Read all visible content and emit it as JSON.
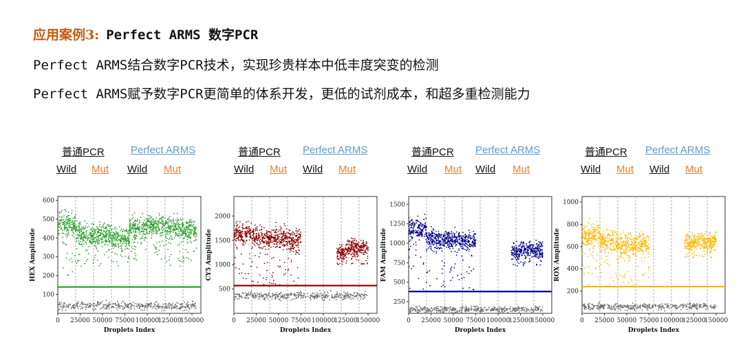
{
  "header": {
    "title_prefix": "应用案例3:",
    "title_main": "Perfect ARMS  数字PCR",
    "line1": "Perfect ARMS结合数字PCR技术，实现珍贵样本中低丰度突变的检测",
    "line2": "Perfect ARMS赋予数字PCR更简单的体系开发，更低的试剂成本，和超多重检测能力"
  },
  "labels": {
    "pcr": "普通PCR",
    "arms": "Perfect ARMS",
    "wild": "Wild",
    "mut": "Mut"
  },
  "colors": {
    "title_accent": "#c55a11",
    "arms_blue": "#5b9bd5",
    "mut_orange": "#ed7d31",
    "negative_gray": "#6e6e6e"
  },
  "chart_data": [
    {
      "type": "scatter",
      "channel": "HEX",
      "ylabel": "HEX Amplitude",
      "xlabel": "Droplets Index",
      "xlim": [
        0,
        160000
      ],
      "ylim": [
        0,
        620
      ],
      "xticks": [
        0,
        25000,
        50000,
        75000,
        100000,
        125000,
        150000
      ],
      "yticks": [
        100,
        200,
        300,
        400,
        500,
        600
      ],
      "threshold": 140,
      "color": "#2ca02c",
      "segment_bounds": [
        0,
        20000,
        40000,
        60000,
        80000,
        100000,
        120000,
        140000,
        160000
      ],
      "positive_segments": [
        {
          "x0": 0,
          "x1": 20000,
          "center": 470,
          "spread": 45,
          "low_min": 200
        },
        {
          "x0": 20000,
          "x1": 40000,
          "center": 420,
          "spread": 40,
          "low_min": 250
        },
        {
          "x0": 40000,
          "x1": 60000,
          "center": 420,
          "spread": 40,
          "low_min": 250
        },
        {
          "x0": 60000,
          "x1": 80000,
          "center": 400,
          "spread": 40,
          "low_min": 250
        },
        {
          "x0": 80000,
          "x1": 100000,
          "center": 450,
          "spread": 40,
          "low_min": 280
        },
        {
          "x0": 100000,
          "x1": 120000,
          "center": 470,
          "spread": 35,
          "low_min": 280
        },
        {
          "x0": 120000,
          "x1": 140000,
          "center": 450,
          "spread": 40,
          "low_min": 250
        },
        {
          "x0": 140000,
          "x1": 155000,
          "center": 440,
          "spread": 40,
          "low_min": 250
        }
      ],
      "negative_cluster": {
        "x0": 0,
        "x1": 155000,
        "center": 40,
        "spread": 15
      }
    },
    {
      "type": "scatter",
      "channel": "CY5",
      "ylabel": "CY5 Amplitude",
      "xlabel": "Droplets Index",
      "xlim": [
        0,
        160000
      ],
      "ylim": [
        0,
        2400
      ],
      "xticks": [
        0,
        25000,
        50000,
        75000,
        100000,
        125000,
        150000
      ],
      "yticks": [
        500,
        1000,
        1500,
        2000
      ],
      "threshold": 570,
      "color": "#8b0000",
      "segment_bounds": [
        0,
        20000,
        40000,
        60000,
        80000,
        100000,
        120000,
        140000,
        160000
      ],
      "positive_segments": [
        {
          "x0": 0,
          "x1": 20000,
          "center": 1650,
          "spread": 150,
          "low_min": 550
        },
        {
          "x0": 20000,
          "x1": 40000,
          "center": 1550,
          "spread": 150,
          "low_min": 550
        },
        {
          "x0": 40000,
          "x1": 60000,
          "center": 1550,
          "spread": 150,
          "low_min": 550
        },
        {
          "x0": 60000,
          "x1": 75000,
          "center": 1500,
          "spread": 150,
          "low_min": 550
        },
        {
          "x0": 115000,
          "x1": 125000,
          "center": 1250,
          "spread": 110,
          "low_min": 1000
        },
        {
          "x0": 125000,
          "x1": 150000,
          "center": 1350,
          "spread": 110,
          "low_min": 1000
        }
      ],
      "negative_cluster": {
        "x0": 0,
        "x1": 150000,
        "center": 360,
        "spread": 55
      }
    },
    {
      "type": "scatter",
      "channel": "FAM",
      "ylabel": "FAM Amplitude",
      "xlabel": "Droplets Index",
      "xlim": [
        0,
        160000
      ],
      "ylim": [
        100,
        1600
      ],
      "xticks": [
        0,
        25000,
        50000,
        75000,
        100000,
        125000,
        150000
      ],
      "yticks": [
        250,
        500,
        750,
        1000,
        1250,
        1500
      ],
      "threshold": 380,
      "color": "#00008b",
      "segment_bounds": [
        0,
        20000,
        40000,
        60000,
        80000,
        100000,
        120000,
        140000,
        160000
      ],
      "positive_segments": [
        {
          "x0": 0,
          "x1": 20000,
          "center": 1180,
          "spread": 90,
          "low_min": 400
        },
        {
          "x0": 20000,
          "x1": 40000,
          "center": 1050,
          "spread": 80,
          "low_min": 400
        },
        {
          "x0": 40000,
          "x1": 60000,
          "center": 1050,
          "spread": 80,
          "low_min": 400
        },
        {
          "x0": 60000,
          "x1": 75000,
          "center": 1030,
          "spread": 80,
          "low_min": 400
        },
        {
          "x0": 115000,
          "x1": 125000,
          "center": 900,
          "spread": 70,
          "low_min": 700
        },
        {
          "x0": 125000,
          "x1": 150000,
          "center": 920,
          "spread": 70,
          "low_min": 700
        }
      ],
      "negative_cluster": {
        "x0": 0,
        "x1": 150000,
        "center": 150,
        "spread": 30
      }
    },
    {
      "type": "scatter",
      "channel": "ROX",
      "ylabel": "ROX Amplitude",
      "xlabel": "Droplets Index",
      "xlim": [
        0,
        160000
      ],
      "ylim": [
        0,
        1050
      ],
      "xticks": [
        0,
        25000,
        50000,
        75000,
        100000,
        125000,
        150000
      ],
      "yticks": [
        200,
        400,
        600,
        800,
        1000
      ],
      "threshold": 240,
      "color": "#ffb800",
      "segment_bounds": [
        0,
        20000,
        40000,
        60000,
        80000,
        100000,
        120000,
        140000,
        160000
      ],
      "positive_segments": [
        {
          "x0": 0,
          "x1": 20000,
          "center": 700,
          "spread": 80,
          "low_min": 250
        },
        {
          "x0": 20000,
          "x1": 40000,
          "center": 650,
          "spread": 70,
          "low_min": 250
        },
        {
          "x0": 40000,
          "x1": 60000,
          "center": 620,
          "spread": 70,
          "low_min": 250
        },
        {
          "x0": 60000,
          "x1": 75000,
          "center": 620,
          "spread": 70,
          "low_min": 250
        },
        {
          "x0": 115000,
          "x1": 125000,
          "center": 630,
          "spread": 50,
          "low_min": 500
        },
        {
          "x0": 125000,
          "x1": 150000,
          "center": 650,
          "spread": 50,
          "low_min": 500
        }
      ],
      "negative_cluster": {
        "x0": 0,
        "x1": 150000,
        "center": 60,
        "spread": 20
      }
    }
  ]
}
